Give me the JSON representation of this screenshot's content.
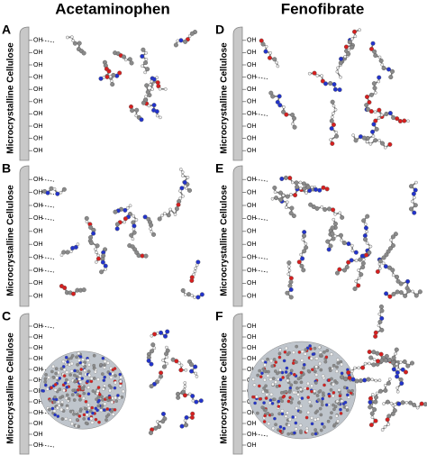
{
  "columns": [
    {
      "title": "Acetaminophen"
    },
    {
      "title": "Fenofibrate"
    }
  ],
  "panels": [
    {
      "letter": "A",
      "surface_label": "Microcrystalline Cellulose",
      "hydroxyl_labels": [
        "OH",
        "OH",
        "OH",
        "OH",
        "OH",
        "OH",
        "OH",
        "OH",
        "OH",
        "OH"
      ]
    },
    {
      "letter": "B",
      "surface_label": "Microcrystalline Cellulose",
      "hydroxyl_labels": [
        "OH",
        "OH",
        "OH",
        "OH",
        "OH",
        "OH",
        "OH",
        "OH",
        "OH",
        "OH"
      ]
    },
    {
      "letter": "C",
      "surface_label": "Microcrystalline Cellulose",
      "hydroxyl_labels": [
        "OH",
        "OH",
        "OH",
        "OH",
        "OH",
        "OH",
        "OH",
        "OH",
        "OH",
        "OH",
        "OH",
        "OH"
      ]
    },
    {
      "letter": "D",
      "surface_label": "Microcrystalline Cellulose",
      "hydroxyl_labels": [
        "OH",
        "OH",
        "OH",
        "OH",
        "OH",
        "OH",
        "OH",
        "OH",
        "OH",
        "OH"
      ]
    },
    {
      "letter": "E",
      "surface_label": "Microcrystalline Cellulose",
      "hydroxyl_labels": [
        "OH",
        "OH",
        "OH",
        "OH",
        "OH",
        "OH",
        "OH",
        "OH",
        "OH",
        "OH"
      ]
    },
    {
      "letter": "F",
      "surface_label": "Microcrystalline Cellulose",
      "hydroxyl_labels": [
        "OH",
        "OH",
        "OH",
        "OH",
        "OH",
        "OH",
        "OH",
        "OH",
        "OH",
        "OH",
        "OH",
        "OH"
      ]
    }
  ]
}
